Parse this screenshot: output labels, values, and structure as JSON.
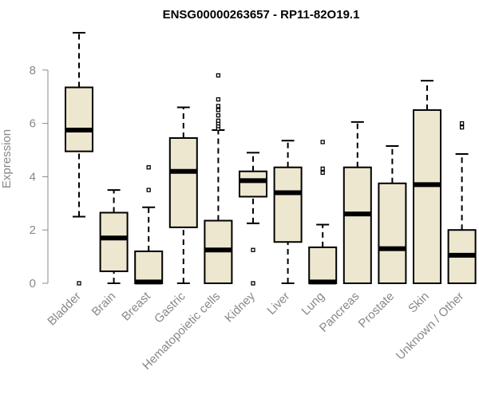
{
  "chart_data": {
    "type": "boxplot",
    "title": "ENSG00000263657 - RP11-82O19.1",
    "xlabel": "",
    "ylabel": "Expression",
    "ylim": [
      0,
      9.6
    ],
    "yticks": [
      0,
      2,
      4,
      6,
      8
    ],
    "grid": false,
    "box_fill": "#ede7cf",
    "box_stroke": "#000000",
    "categories": [
      "Bladder",
      "Brain",
      "Breast",
      "Gastric",
      "Hematopoietic cells",
      "Kidney",
      "Liver",
      "Lung",
      "Pancreas",
      "Prostate",
      "Skin",
      "Unknown / Other"
    ],
    "boxes": [
      {
        "min": 2.5,
        "q1": 4.95,
        "median": 5.75,
        "q3": 7.35,
        "max": 9.4,
        "outliers": [
          0.0
        ]
      },
      {
        "min": 0.0,
        "q1": 0.45,
        "median": 1.7,
        "q3": 2.65,
        "max": 3.5,
        "outliers": []
      },
      {
        "min": 0.0,
        "q1": 0.0,
        "median": 0.05,
        "q3": 1.2,
        "max": 2.85,
        "outliers": [
          3.5,
          4.35
        ]
      },
      {
        "min": 0.0,
        "q1": 2.1,
        "median": 4.2,
        "q3": 5.45,
        "max": 6.6,
        "outliers": []
      },
      {
        "min": 0.0,
        "q1": 0.0,
        "median": 1.25,
        "q3": 2.35,
        "max": 5.75,
        "outliers": [
          5.8,
          5.9,
          6.0,
          6.1,
          6.3,
          6.5,
          6.65,
          6.9,
          7.8
        ]
      },
      {
        "min": 2.25,
        "q1": 3.25,
        "median": 3.85,
        "q3": 4.2,
        "max": 4.9,
        "outliers": [
          1.25,
          0.0
        ]
      },
      {
        "min": 0.0,
        "q1": 1.55,
        "median": 3.4,
        "q3": 4.35,
        "max": 5.35,
        "outliers": []
      },
      {
        "min": 0.0,
        "q1": 0.0,
        "median": 0.05,
        "q3": 1.35,
        "max": 2.2,
        "outliers": [
          4.15,
          4.3,
          5.3
        ]
      },
      {
        "min": 0.0,
        "q1": 0.0,
        "median": 2.6,
        "q3": 4.35,
        "max": 6.05,
        "outliers": []
      },
      {
        "min": 0.0,
        "q1": 0.0,
        "median": 1.3,
        "q3": 3.75,
        "max": 5.15,
        "outliers": []
      },
      {
        "min": 0.0,
        "q1": 0.0,
        "median": 3.7,
        "q3": 6.5,
        "max": 7.6,
        "outliers": []
      },
      {
        "min": 0.0,
        "q1": 0.0,
        "median": 1.05,
        "q3": 2.0,
        "max": 4.85,
        "outliers": [
          5.85,
          6.0
        ]
      }
    ]
  }
}
